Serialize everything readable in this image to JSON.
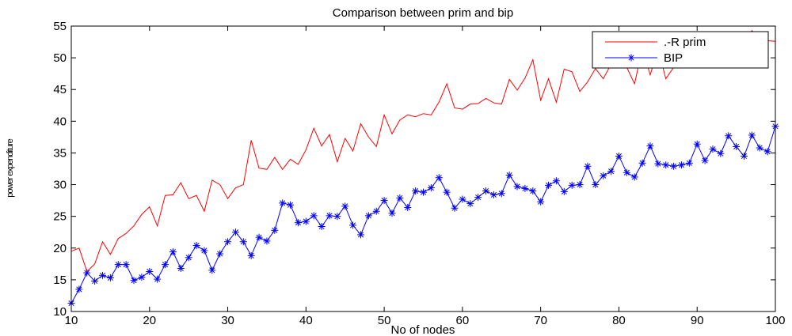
{
  "chart_data": {
    "type": "line",
    "title": "Comparison between prim and bip",
    "xlabel": "No of nodes",
    "ylabel": "power expenditure",
    "xlim": [
      10,
      100
    ],
    "ylim": [
      10,
      55
    ],
    "xticks": [
      10,
      20,
      30,
      40,
      50,
      60,
      70,
      80,
      90,
      100
    ],
    "yticks": [
      10,
      15,
      20,
      25,
      30,
      35,
      40,
      45,
      50,
      55
    ],
    "legend_position": "top-right",
    "grid": false,
    "x": [
      10,
      11,
      12,
      13,
      14,
      15,
      16,
      17,
      18,
      19,
      20,
      21,
      22,
      23,
      24,
      25,
      26,
      27,
      28,
      29,
      30,
      31,
      32,
      33,
      34,
      35,
      36,
      37,
      38,
      39,
      40,
      41,
      42,
      43,
      44,
      45,
      46,
      47,
      48,
      49,
      50,
      51,
      52,
      53,
      54,
      55,
      56,
      57,
      58,
      59,
      60,
      61,
      62,
      63,
      64,
      65,
      66,
      67,
      68,
      69,
      70,
      71,
      72,
      73,
      74,
      75,
      76,
      77,
      78,
      79,
      80,
      81,
      82,
      83,
      84,
      85,
      86,
      87,
      88,
      89,
      90,
      91,
      92,
      93,
      94,
      95,
      96,
      97,
      98,
      99,
      100
    ],
    "series": [
      {
        "name": ".-R prim",
        "color": "#ff0000",
        "marker": "none",
        "values": [
          19.5,
          20.0,
          16.3,
          17.5,
          21.0,
          19.0,
          21.5,
          22.3,
          23.5,
          25.3,
          26.5,
          23.5,
          28.3,
          28.4,
          30.3,
          27.8,
          28.3,
          25.8,
          30.7,
          30.0,
          27.8,
          29.5,
          30.0,
          37.0,
          32.6,
          32.4,
          34.3,
          32.4,
          34.0,
          33.2,
          35.5,
          38.9,
          36.1,
          37.9,
          33.6,
          37.3,
          35.3,
          39.6,
          37.5,
          36.0,
          41.0,
          38.0,
          40.2,
          41.0,
          40.7,
          41.2,
          41.0,
          43.0,
          45.9,
          42.1,
          41.9,
          42.7,
          42.8,
          43.6,
          42.9,
          42.7,
          46.6,
          44.9,
          46.8,
          49.7,
          43.3,
          46.7,
          43.0,
          48.2,
          47.8,
          44.7,
          46.2,
          48.3,
          46.7,
          49.0,
          49.0,
          48.5,
          45.9,
          51.5,
          47.3,
          51.4,
          46.7,
          48.5,
          51.7,
          50.3,
          51.6,
          52.3,
          53.3,
          50.4,
          53.7,
          52.5,
          51.6,
          54.3,
          53.0,
          52.7,
          52.6
        ]
      },
      {
        "name": "BIP",
        "color": "#0000ff",
        "marker": "*",
        "values": [
          11.3,
          13.5,
          16.1,
          14.8,
          15.7,
          15.3,
          17.4,
          17.4,
          14.9,
          15.4,
          16.3,
          15.1,
          17.4,
          19.4,
          16.8,
          18.5,
          20.4,
          19.6,
          16.5,
          19.1,
          21.0,
          22.5,
          21.0,
          18.8,
          21.7,
          21.1,
          22.8,
          27.1,
          26.8,
          24.0,
          24.2,
          25.1,
          23.4,
          25.1,
          25.0,
          26.6,
          23.6,
          22.1,
          25.1,
          25.8,
          27.5,
          25.5,
          27.9,
          26.4,
          29.0,
          28.8,
          29.5,
          31.1,
          28.8,
          26.3,
          27.7,
          27.0,
          28.0,
          29.0,
          28.4,
          28.6,
          31.5,
          29.7,
          29.4,
          29.0,
          27.3,
          29.9,
          30.6,
          28.9,
          29.9,
          30.0,
          32.9,
          30.0,
          31.4,
          32.1,
          34.5,
          31.9,
          31.2,
          33.4,
          36.1,
          33.3,
          33.1,
          32.9,
          33.1,
          33.4,
          36.4,
          33.8,
          35.6,
          34.9,
          37.7,
          36.0,
          34.5,
          37.8,
          35.8,
          35.2,
          39.2
        ]
      }
    ]
  }
}
